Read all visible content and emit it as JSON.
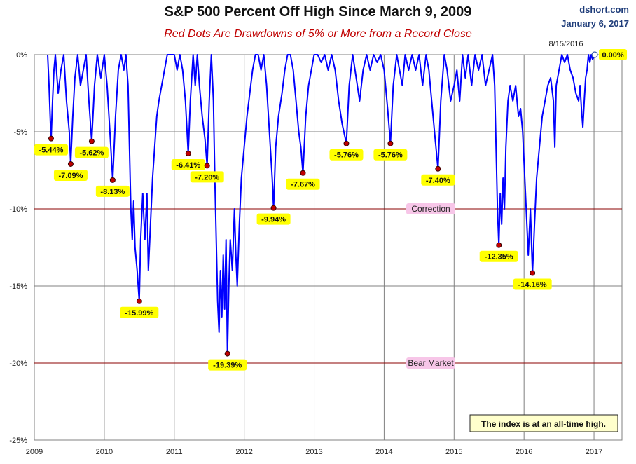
{
  "chart_data": {
    "type": "line",
    "title": "S&P 500 Percent Off High Since March 9, 2009",
    "subtitle": "Red Dots Are Drawdowns of 5% or More from a Record Close",
    "source": "dshort.com",
    "date": "January 6, 2017",
    "ylim": [
      -25,
      0
    ],
    "xlim": [
      2009,
      2017.4
    ],
    "y_ticks": [
      {
        "value": 0,
        "label": "0%"
      },
      {
        "value": -5,
        "label": "-5%"
      },
      {
        "value": -10,
        "label": "-10%"
      },
      {
        "value": -15,
        "label": "-15%"
      },
      {
        "value": -20,
        "label": "-20%"
      },
      {
        "value": -25,
        "label": "-25%"
      }
    ],
    "x_ticks": [
      {
        "value": 2009,
        "label": "2009"
      },
      {
        "value": 2010,
        "label": "2010"
      },
      {
        "value": 2011,
        "label": "2011"
      },
      {
        "value": 2012,
        "label": "2012"
      },
      {
        "value": 2013,
        "label": "2013"
      },
      {
        "value": 2014,
        "label": "2014"
      },
      {
        "value": 2015,
        "label": "2015"
      },
      {
        "value": 2016,
        "label": "2016"
      },
      {
        "value": 2017,
        "label": "2017"
      }
    ],
    "grid": true,
    "series_color": "#0000ff",
    "series": [
      {
        "values": [
          [
            2009.19,
            0
          ],
          [
            2009.21,
            -2
          ],
          [
            2009.23,
            -4.5
          ],
          [
            2009.24,
            -5.44
          ],
          [
            2009.26,
            -3
          ],
          [
            2009.28,
            -1
          ],
          [
            2009.3,
            0
          ],
          [
            2009.34,
            -2.5
          ],
          [
            2009.38,
            -1
          ],
          [
            2009.42,
            0
          ],
          [
            2009.46,
            -3
          ],
          [
            2009.5,
            -5
          ],
          [
            2009.52,
            -7.09
          ],
          [
            2009.55,
            -4
          ],
          [
            2009.58,
            -1.5
          ],
          [
            2009.62,
            0
          ],
          [
            2009.66,
            -2
          ],
          [
            2009.7,
            -1
          ],
          [
            2009.74,
            0
          ],
          [
            2009.78,
            -3
          ],
          [
            2009.82,
            -5.62
          ],
          [
            2009.86,
            -2
          ],
          [
            2009.9,
            0
          ],
          [
            2009.95,
            -1.5
          ],
          [
            2010.0,
            0
          ],
          [
            2010.04,
            -2
          ],
          [
            2010.08,
            -5
          ],
          [
            2010.12,
            -8.13
          ],
          [
            2010.16,
            -4
          ],
          [
            2010.2,
            -1
          ],
          [
            2010.24,
            0
          ],
          [
            2010.28,
            -1
          ],
          [
            2010.31,
            0
          ],
          [
            2010.34,
            -2
          ],
          [
            2010.36,
            -6
          ],
          [
            2010.38,
            -10
          ],
          [
            2010.4,
            -12
          ],
          [
            2010.42,
            -9.5
          ],
          [
            2010.44,
            -12.5
          ],
          [
            2010.47,
            -14
          ],
          [
            2010.5,
            -15.99
          ],
          [
            2010.52,
            -12
          ],
          [
            2010.55,
            -9
          ],
          [
            2010.58,
            -12
          ],
          [
            2010.61,
            -9
          ],
          [
            2010.63,
            -14
          ],
          [
            2010.66,
            -11
          ],
          [
            2010.69,
            -8
          ],
          [
            2010.72,
            -6
          ],
          [
            2010.75,
            -4
          ],
          [
            2010.78,
            -3
          ],
          [
            2010.82,
            -2
          ],
          [
            2010.86,
            -1
          ],
          [
            2010.9,
            0
          ],
          [
            2010.95,
            0
          ],
          [
            2011.0,
            0
          ],
          [
            2011.04,
            -1
          ],
          [
            2011.08,
            0
          ],
          [
            2011.12,
            -1
          ],
          [
            2011.16,
            -3
          ],
          [
            2011.2,
            -6.41
          ],
          [
            2011.23,
            -3
          ],
          [
            2011.27,
            0
          ],
          [
            2011.3,
            -2
          ],
          [
            2011.33,
            0
          ],
          [
            2011.36,
            -2
          ],
          [
            2011.4,
            -4
          ],
          [
            2011.44,
            -5.5
          ],
          [
            2011.47,
            -7.2
          ],
          [
            2011.5,
            -3
          ],
          [
            2011.53,
            0
          ],
          [
            2011.56,
            -3
          ],
          [
            2011.58,
            -8
          ],
          [
            2011.6,
            -12
          ],
          [
            2011.62,
            -16
          ],
          [
            2011.64,
            -18
          ],
          [
            2011.66,
            -14
          ],
          [
            2011.68,
            -17
          ],
          [
            2011.7,
            -13
          ],
          [
            2011.72,
            -16.5
          ],
          [
            2011.74,
            -12
          ],
          [
            2011.76,
            -19.39
          ],
          [
            2011.78,
            -15
          ],
          [
            2011.8,
            -12
          ],
          [
            2011.83,
            -14
          ],
          [
            2011.86,
            -10
          ],
          [
            2011.88,
            -13
          ],
          [
            2011.9,
            -15
          ],
          [
            2011.93,
            -11
          ],
          [
            2011.96,
            -8
          ],
          [
            2012.0,
            -6
          ],
          [
            2012.04,
            -4
          ],
          [
            2012.08,
            -2.5
          ],
          [
            2012.12,
            -1
          ],
          [
            2012.16,
            0
          ],
          [
            2012.2,
            0
          ],
          [
            2012.24,
            -1
          ],
          [
            2012.28,
            0
          ],
          [
            2012.32,
            -2
          ],
          [
            2012.36,
            -5
          ],
          [
            2012.4,
            -8
          ],
          [
            2012.42,
            -9.94
          ],
          [
            2012.45,
            -6
          ],
          [
            2012.49,
            -4
          ],
          [
            2012.54,
            -2.5
          ],
          [
            2012.58,
            -1
          ],
          [
            2012.62,
            0
          ],
          [
            2012.66,
            0
          ],
          [
            2012.7,
            -1
          ],
          [
            2012.74,
            -3
          ],
          [
            2012.78,
            -5
          ],
          [
            2012.81,
            -6
          ],
          [
            2012.84,
            -7.67
          ],
          [
            2012.88,
            -4
          ],
          [
            2012.92,
            -2
          ],
          [
            2012.96,
            -1
          ],
          [
            2013.0,
            0
          ],
          [
            2013.05,
            0
          ],
          [
            2013.1,
            -0.5
          ],
          [
            2013.15,
            0
          ],
          [
            2013.2,
            -1
          ],
          [
            2013.25,
            0
          ],
          [
            2013.3,
            -1
          ],
          [
            2013.35,
            -3
          ],
          [
            2013.4,
            -4.5
          ],
          [
            2013.46,
            -5.76
          ],
          [
            2013.5,
            -2
          ],
          [
            2013.55,
            0
          ],
          [
            2013.6,
            -1.5
          ],
          [
            2013.65,
            -3
          ],
          [
            2013.7,
            -1
          ],
          [
            2013.75,
            0
          ],
          [
            2013.8,
            -1
          ],
          [
            2013.85,
            0
          ],
          [
            2013.9,
            -0.5
          ],
          [
            2013.95,
            0
          ],
          [
            2014.0,
            -1
          ],
          [
            2014.05,
            -3.5
          ],
          [
            2014.09,
            -5.76
          ],
          [
            2014.13,
            -2
          ],
          [
            2014.18,
            0
          ],
          [
            2014.22,
            -1
          ],
          [
            2014.26,
            -2
          ],
          [
            2014.3,
            0
          ],
          [
            2014.35,
            -1
          ],
          [
            2014.4,
            0
          ],
          [
            2014.45,
            -1
          ],
          [
            2014.5,
            0
          ],
          [
            2014.55,
            -2
          ],
          [
            2014.6,
            0
          ],
          [
            2014.64,
            -1
          ],
          [
            2014.68,
            -3
          ],
          [
            2014.72,
            -5
          ],
          [
            2014.77,
            -7.4
          ],
          [
            2014.81,
            -3
          ],
          [
            2014.86,
            0
          ],
          [
            2014.9,
            -1
          ],
          [
            2014.95,
            -3
          ],
          [
            2015.0,
            -2
          ],
          [
            2015.04,
            -1
          ],
          [
            2015.08,
            -3
          ],
          [
            2015.12,
            0
          ],
          [
            2015.16,
            -1.5
          ],
          [
            2015.2,
            0
          ],
          [
            2015.25,
            -2
          ],
          [
            2015.3,
            0
          ],
          [
            2015.35,
            -1
          ],
          [
            2015.4,
            0
          ],
          [
            2015.45,
            -2
          ],
          [
            2015.5,
            -1
          ],
          [
            2015.55,
            0
          ],
          [
            2015.58,
            -2
          ],
          [
            2015.6,
            -6
          ],
          [
            2015.62,
            -10
          ],
          [
            2015.64,
            -12.35
          ],
          [
            2015.66,
            -9
          ],
          [
            2015.68,
            -11
          ],
          [
            2015.7,
            -8
          ],
          [
            2015.72,
            -10
          ],
          [
            2015.74,
            -6
          ],
          [
            2015.77,
            -3
          ],
          [
            2015.8,
            -2
          ],
          [
            2015.84,
            -3
          ],
          [
            2015.88,
            -2
          ],
          [
            2015.92,
            -4
          ],
          [
            2015.95,
            -3.5
          ],
          [
            2015.98,
            -5
          ],
          [
            2016.0,
            -7
          ],
          [
            2016.02,
            -9
          ],
          [
            2016.04,
            -11
          ],
          [
            2016.06,
            -13
          ],
          [
            2016.09,
            -10
          ],
          [
            2016.12,
            -14.16
          ],
          [
            2016.15,
            -11
          ],
          [
            2016.18,
            -8
          ],
          [
            2016.22,
            -6
          ],
          [
            2016.26,
            -4
          ],
          [
            2016.3,
            -3
          ],
          [
            2016.34,
            -2
          ],
          [
            2016.38,
            -1.5
          ],
          [
            2016.42,
            -3
          ],
          [
            2016.44,
            -6
          ],
          [
            2016.46,
            -2
          ],
          [
            2016.5,
            -1
          ],
          [
            2016.54,
            0
          ],
          [
            2016.58,
            -0.5
          ],
          [
            2016.62,
            0
          ],
          [
            2016.66,
            -1
          ],
          [
            2016.7,
            -1.5
          ],
          [
            2016.74,
            -2.5
          ],
          [
            2016.78,
            -3
          ],
          [
            2016.8,
            -2
          ],
          [
            2016.82,
            -3.5
          ],
          [
            2016.84,
            -4.7
          ],
          [
            2016.86,
            -3
          ],
          [
            2016.88,
            -1.5
          ],
          [
            2016.9,
            -1
          ],
          [
            2016.92,
            0
          ],
          [
            2016.94,
            -0.5
          ],
          [
            2016.96,
            0
          ],
          [
            2016.98,
            -0.3
          ],
          [
            2017.01,
            0
          ]
        ]
      }
    ],
    "drawdown_markers": [
      {
        "x": 2009.24,
        "y": -5.44,
        "label": "-5.44%"
      },
      {
        "x": 2009.52,
        "y": -7.09,
        "label": "-7.09%"
      },
      {
        "x": 2009.82,
        "y": -5.62,
        "label": "-5.62%"
      },
      {
        "x": 2010.12,
        "y": -8.13,
        "label": "-8.13%"
      },
      {
        "x": 2010.5,
        "y": -15.99,
        "label": "-15.99%"
      },
      {
        "x": 2011.2,
        "y": -6.41,
        "label": "-6.41%"
      },
      {
        "x": 2011.47,
        "y": -7.2,
        "label": "-7.20%"
      },
      {
        "x": 2011.76,
        "y": -19.39,
        "label": "-19.39%"
      },
      {
        "x": 2012.42,
        "y": -9.94,
        "label": "-9.94%"
      },
      {
        "x": 2012.84,
        "y": -7.67,
        "label": "-7.67%"
      },
      {
        "x": 2013.46,
        "y": -5.76,
        "label": "-5.76%"
      },
      {
        "x": 2014.09,
        "y": -5.76,
        "label": "-5.76%"
      },
      {
        "x": 2014.77,
        "y": -7.4,
        "label": "-7.40%"
      },
      {
        "x": 2015.64,
        "y": -12.35,
        "label": "-12.35%"
      },
      {
        "x": 2016.12,
        "y": -14.16,
        "label": "-14.16%"
      }
    ],
    "current_point": {
      "x": 2017.01,
      "y": 0,
      "label": "0.00%"
    },
    "high_date_label": "8/15/2016",
    "reference_lines": [
      {
        "value": -10,
        "label": "Correction",
        "color": "#8b0000"
      },
      {
        "value": -20,
        "label": "Bear Market",
        "color": "#8b0000"
      }
    ],
    "note": "The index is at an all-time high.",
    "colors": {
      "marker": "#c00000",
      "label_bg": "#ffff00",
      "ref_label_bg": "#f7c6e8",
      "note_bg": "#ffffcc",
      "grid": "#808080"
    }
  }
}
